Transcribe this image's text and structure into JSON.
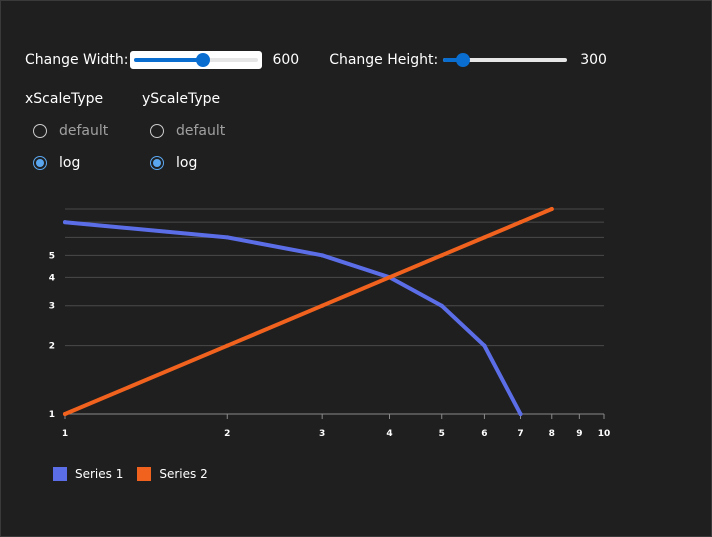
{
  "controls": {
    "width_label": "Change Width:",
    "width_value": "600",
    "width_fraction": 0.55,
    "height_label": "Change Height:",
    "height_value": "300",
    "height_fraction": 0.16
  },
  "x_scale": {
    "title": "xScaleType",
    "options": [
      {
        "label": "default",
        "checked": false
      },
      {
        "label": "log",
        "checked": true
      }
    ]
  },
  "y_scale": {
    "title": "yScaleType",
    "options": [
      {
        "label": "default",
        "checked": false
      },
      {
        "label": "log",
        "checked": true
      }
    ]
  },
  "chart_data": {
    "type": "line",
    "title": "",
    "xlabel": "",
    "ylabel": "",
    "xscale": "log",
    "yscale": "log",
    "xlim": [
      1,
      10
    ],
    "ylim": [
      1,
      8
    ],
    "x_ticks": [
      "1",
      "2",
      "3",
      "4",
      "5",
      "6",
      "7",
      "8",
      "9",
      "10"
    ],
    "x_tick_values": [
      1,
      2,
      3,
      4,
      5,
      6,
      7,
      8,
      9,
      10
    ],
    "y_ticks": [
      "1",
      "2",
      "3",
      "4",
      "5"
    ],
    "y_tick_values": [
      1,
      2,
      3,
      4,
      5
    ],
    "grid": true,
    "legend_position": "bottom-left",
    "series": [
      {
        "name": "Series 1",
        "color": "#5b6ee8",
        "x": [
          1,
          2,
          3,
          4,
          5,
          6,
          7
        ],
        "y": [
          7,
          6,
          5,
          4,
          3,
          2,
          1
        ]
      },
      {
        "name": "Series 2",
        "color": "#f0621e",
        "x": [
          1,
          2,
          3,
          4,
          5,
          6,
          7,
          8
        ],
        "y": [
          1,
          2,
          3,
          4,
          5,
          6,
          7,
          8
        ]
      }
    ]
  }
}
